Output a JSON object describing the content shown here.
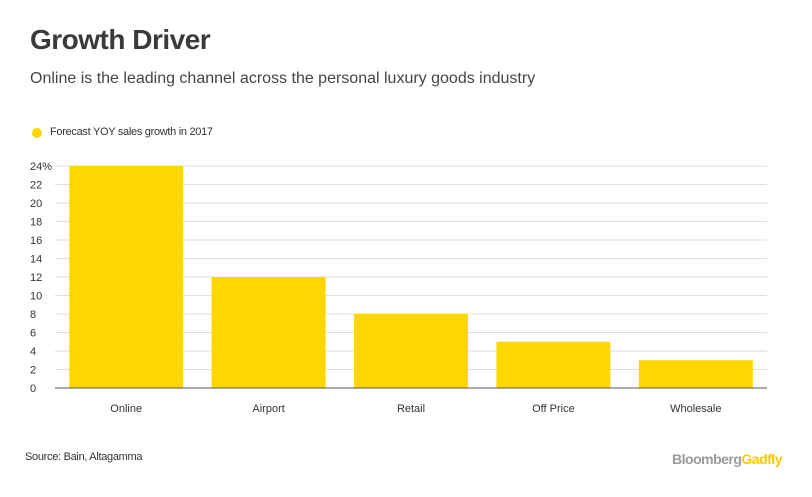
{
  "title": "Growth Driver",
  "subtitle": "Online is the leading channel across the personal luxury goods industry",
  "legend_label": "Forecast YOY sales growth in 2017",
  "source": "Source: Bain, Altagamma",
  "brand": {
    "part1": "Bloomberg",
    "part2": "Gadfly"
  },
  "colors": {
    "bar": "#FFD700",
    "grid": "#dddddd",
    "axis": "#555555"
  },
  "chart_data": {
    "type": "bar",
    "categories": [
      "Online",
      "Airport",
      "Retail",
      "Off Price",
      "Wholesale"
    ],
    "values": [
      24,
      12,
      8,
      5,
      3
    ],
    "ylim": [
      0,
      24
    ],
    "yticks": [
      "0",
      "2",
      "4",
      "6",
      "8",
      "10",
      "12",
      "14",
      "16",
      "18",
      "20",
      "22",
      "24%"
    ],
    "grid": true,
    "legend_position": "top-left"
  }
}
